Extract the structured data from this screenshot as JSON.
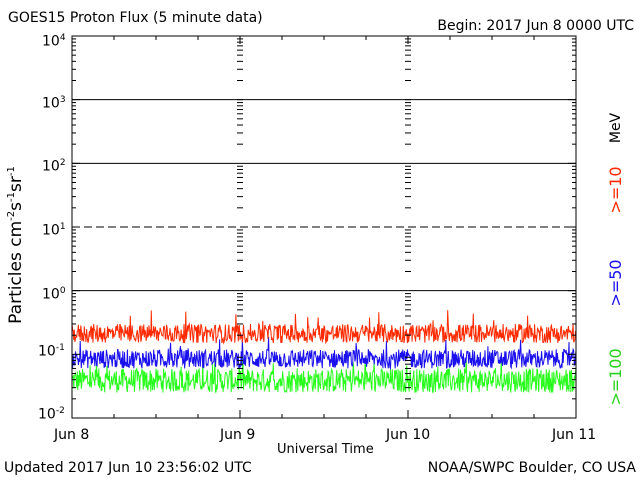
{
  "title": "GOES15 Proton Flux (5 minute data)",
  "begin_label": "Begin: 2017 Jun 8 0000 UTC",
  "updated_label": "Updated 2017 Jun 10 23:56:02 UTC",
  "credit_label": "NOAA/SWPC Boulder, CO USA",
  "colors": {
    "red": "#ff2a00",
    "blue": "#1a10ee",
    "green": "#28ff1c"
  },
  "chart_data": {
    "type": "line",
    "title": "GOES15 Proton Flux (5 minute data)",
    "xlabel": "Universal Time",
    "ylabel": "Particles cm-2 s-1 sr-1",
    "y_scale": "log",
    "ylim": [
      0.01,
      10000
    ],
    "xlim": [
      "2017-06-08 00:00",
      "2017-06-11 00:00"
    ],
    "x_ticks": [
      "Jun 8",
      "Jun 9",
      "Jun 10",
      "Jun 11"
    ],
    "y_ticks": [
      {
        "base": "10",
        "exp": "-2"
      },
      {
        "base": "10",
        "exp": "-1"
      },
      {
        "base": "10",
        "exp": "0"
      },
      {
        "base": "10",
        "exp": "1"
      },
      {
        "base": "10",
        "exp": "2"
      },
      {
        "base": "10",
        "exp": "3"
      },
      {
        "base": "10",
        "exp": "4"
      }
    ],
    "thresholds": [
      {
        "value": 10,
        "style": "dashed"
      },
      {
        "value": 1,
        "style": "solid"
      },
      {
        "value": 100,
        "style": "solid"
      },
      {
        "value": 1000,
        "style": "solid"
      }
    ],
    "energy_unit": "MeV",
    "series": [
      {
        "name": ">=10",
        "color": "#ff2a00",
        "typical_range": [
          0.15,
          0.3
        ],
        "peak": 0.5
      },
      {
        "name": ">=50",
        "color": "#1a10ee",
        "typical_range": [
          0.06,
          0.12
        ],
        "peak": 0.2
      },
      {
        "name": ">=100",
        "color": "#28ff1c",
        "typical_range": [
          0.025,
          0.06
        ],
        "peak": 0.09
      }
    ]
  }
}
